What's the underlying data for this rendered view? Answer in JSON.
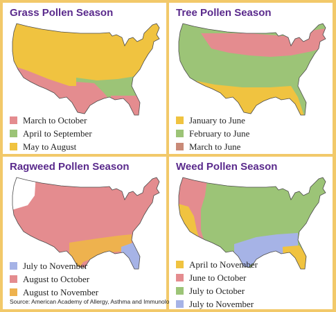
{
  "colors": {
    "pink": "#e48c8f",
    "green": "#9cc477",
    "yellow": "#f0c340",
    "rose": "#c98a78",
    "blue": "#a6b3e6",
    "orange": "#eeb24e",
    "white": "#ffffff",
    "title": "#5a2a8c"
  },
  "panels": [
    {
      "title": "Grass Pollen Season",
      "legend": [
        {
          "label": "March to October",
          "color": "#e48c8f"
        },
        {
          "label": "April to September",
          "color": "#9cc477"
        },
        {
          "label": "May to August",
          "color": "#f0c340"
        }
      ]
    },
    {
      "title": "Tree Pollen Season",
      "legend": [
        {
          "label": "January to June",
          "color": "#f0c340"
        },
        {
          "label": "February to June",
          "color": "#9cc477"
        },
        {
          "label": "March to June",
          "color": "#c98a78"
        }
      ]
    },
    {
      "title": "Ragweed Pollen Season",
      "legend": [
        {
          "label": "July to November",
          "color": "#a6b3e6"
        },
        {
          "label": "August to October",
          "color": "#e48c8f"
        },
        {
          "label": "August to November",
          "color": "#eeb24e"
        }
      ]
    },
    {
      "title": "Weed Pollen Season",
      "legend": [
        {
          "label": "April to November",
          "color": "#f0c340"
        },
        {
          "label": "June to October",
          "color": "#e48c8f"
        },
        {
          "label": "July to October",
          "color": "#9cc477"
        },
        {
          "label": "July to November",
          "color": "#a6b3e6"
        }
      ]
    }
  ],
  "source": "Source: American Academy of Allergy, Asthma and Immunology"
}
